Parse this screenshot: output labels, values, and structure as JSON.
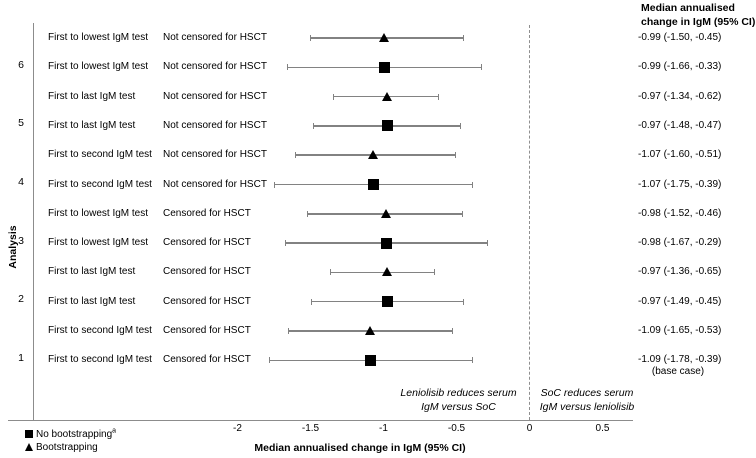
{
  "chart_data": {
    "type": "forest",
    "title": "",
    "xlabel": "Median annualised change in IgM (95% CI)",
    "ylabel": "Analysis",
    "xlim": [
      -2.4,
      0.85
    ],
    "grid": false,
    "zero_reference_line": 0,
    "x_tick_values": [
      -2,
      -1.5,
      -1,
      -0.5,
      0,
      0.5
    ],
    "x_ticks": [
      "-2",
      "-1.5",
      "-1",
      "-0.5",
      "0",
      "0.5"
    ],
    "value_column_header": [
      "Median annualised",
      "change in IgM (95% CI)"
    ],
    "legend": [
      {
        "marker": "square",
        "label": "No bootstrapping",
        "sup": "a"
      },
      {
        "marker": "triangle",
        "label": "Bootstrapping"
      }
    ],
    "annotations": {
      "left_of_zero": [
        "Leniolisib reduces serum",
        "IgM versus SoC"
      ],
      "right_of_zero": [
        "SoC reduces serum",
        "IgM versus leniolisib"
      ]
    },
    "rows": [
      {
        "analysis": "",
        "measure": "First to lowest IgM test",
        "censoring": "Not censored for HSCT",
        "marker": "triangle",
        "median": -0.99,
        "lo": -1.5,
        "hi": -0.45,
        "label": "-0.99 (-1.50, -0.45)",
        "note": ""
      },
      {
        "analysis": "6",
        "measure": "First to lowest IgM test",
        "censoring": "Not censored for HSCT",
        "marker": "square",
        "median": -0.99,
        "lo": -1.66,
        "hi": -0.33,
        "label": "-0.99 (-1.66, -0.33)",
        "note": ""
      },
      {
        "analysis": "",
        "measure": "First to last IgM test",
        "censoring": "Not censored for HSCT",
        "marker": "triangle",
        "median": -0.97,
        "lo": -1.34,
        "hi": -0.62,
        "label": "-0.97 (-1.34, -0.62)",
        "note": ""
      },
      {
        "analysis": "5",
        "measure": "First to last IgM test",
        "censoring": "Not censored for HSCT",
        "marker": "square",
        "median": -0.97,
        "lo": -1.48,
        "hi": -0.47,
        "label": "-0.97 (-1.48, -0.47)",
        "note": ""
      },
      {
        "analysis": "",
        "measure": "First to second IgM test",
        "censoring": "Not censored for HSCT",
        "marker": "triangle",
        "median": -1.07,
        "lo": -1.6,
        "hi": -0.51,
        "label": "-1.07 (-1.60, -0.51)",
        "note": ""
      },
      {
        "analysis": "4",
        "measure": "First to second IgM test",
        "censoring": "Not censored for HSCT",
        "marker": "square",
        "median": -1.07,
        "lo": -1.75,
        "hi": -0.39,
        "label": "-1.07 (-1.75, -0.39)",
        "note": ""
      },
      {
        "analysis": "",
        "measure": "First to lowest IgM test",
        "censoring": "Censored for HSCT",
        "marker": "triangle",
        "median": -0.98,
        "lo": -1.52,
        "hi": -0.46,
        "label": "-0.98 (-1.52, -0.46)",
        "note": ""
      },
      {
        "analysis": "3",
        "measure": "First to lowest IgM test",
        "censoring": "Censored for HSCT",
        "marker": "square",
        "median": -0.98,
        "lo": -1.67,
        "hi": -0.29,
        "label": "-0.98 (-1.67, -0.29)",
        "note": ""
      },
      {
        "analysis": "",
        "measure": "First to last IgM test",
        "censoring": "Censored for HSCT",
        "marker": "triangle",
        "median": -0.97,
        "lo": -1.36,
        "hi": -0.65,
        "label": "-0.97 (-1.36, -0.65)",
        "note": ""
      },
      {
        "analysis": "2",
        "measure": "First to last IgM test",
        "censoring": "Censored for HSCT",
        "marker": "square",
        "median": -0.97,
        "lo": -1.49,
        "hi": -0.45,
        "label": "-0.97 (-1.49, -0.45)",
        "note": ""
      },
      {
        "analysis": "",
        "measure": "First to second IgM test",
        "censoring": "Censored for HSCT",
        "marker": "triangle",
        "median": -1.09,
        "lo": -1.65,
        "hi": -0.53,
        "label": "-1.09 (-1.65, -0.53)",
        "note": ""
      },
      {
        "analysis": "1",
        "measure": "First to second IgM test",
        "censoring": "Censored for HSCT",
        "marker": "square",
        "median": -1.09,
        "lo": -1.78,
        "hi": -0.39,
        "label": "-1.09 (-1.78, -0.39)",
        "note": "(base case)"
      }
    ],
    "colors": {
      "marker": "#000000",
      "ci_line": "#828282",
      "axis": "#8c8c8c",
      "text": "#000000",
      "background": "#ffffff"
    }
  }
}
